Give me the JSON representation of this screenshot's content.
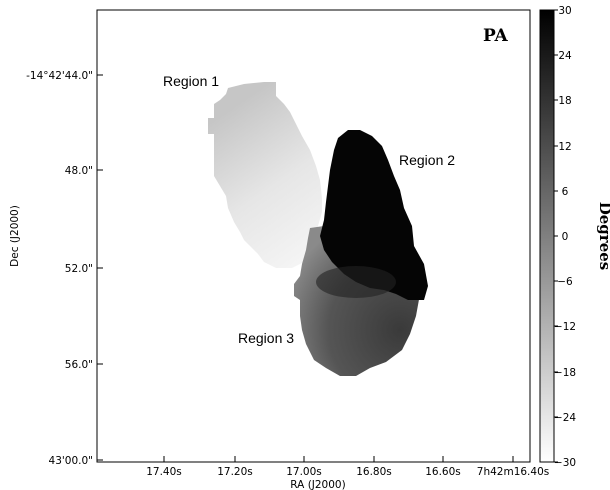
{
  "chart_data": {
    "type": "heatmap",
    "map_label": "PA",
    "xlabel": "RA (J2000)",
    "ylabel": "Dec (J2000)",
    "x_ticks": [
      "17.40s",
      "17.20s",
      "17.00s",
      "16.80s",
      "16.60s",
      "7h42m16.40s"
    ],
    "y_ticks": [
      "-14°42'44.0\"",
      "48.0\"",
      "52.0\"",
      "56.0\"",
      "43'00.0\""
    ],
    "colorbar": {
      "label": "Degrees",
      "range": [
        -30,
        30
      ],
      "ticks": [
        "30",
        "24",
        "18",
        "12",
        "6",
        "0",
        "−6",
        "−12",
        "−18",
        "−24",
        "−30"
      ],
      "colormap": "white-to-black"
    },
    "regions": [
      {
        "name": "Region 1",
        "pa_range_deg": [
          -26,
          -14
        ]
      },
      {
        "name": "Region 2",
        "pa_range_deg": [
          25,
          30
        ]
      },
      {
        "name": "Region 3",
        "pa_range_deg": [
          -4,
          12
        ]
      }
    ]
  }
}
